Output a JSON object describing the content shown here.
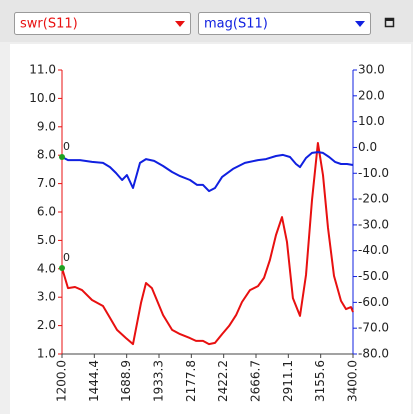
{
  "toolbar": {
    "left_select": "swr(S11)",
    "right_select": "mag(S11)"
  },
  "chart_data": {
    "type": "line",
    "marker_label": "0",
    "xlim": [
      1200,
      3400
    ],
    "xticks": [
      {
        "value": 1200,
        "label": "1200.0"
      },
      {
        "value": 1444.4,
        "label": "1444.4"
      },
      {
        "value": 1688.9,
        "label": "1688.9"
      },
      {
        "value": 1933.3,
        "label": "1933.3"
      },
      {
        "value": 2177.8,
        "label": "2177.8"
      },
      {
        "value": 2422.2,
        "label": "2422.2"
      },
      {
        "value": 2666.7,
        "label": "2666.7"
      },
      {
        "value": 2911.1,
        "label": "2911.1"
      },
      {
        "value": 3155.6,
        "label": "3155.6"
      },
      {
        "value": 3400,
        "label": "3400.0"
      }
    ],
    "ylim": [
      1,
      11
    ],
    "yticks": [
      {
        "value": 1,
        "label": "1.0"
      },
      {
        "value": 2,
        "label": "2.0"
      },
      {
        "value": 3,
        "label": "3.0"
      },
      {
        "value": 4,
        "label": "4.0"
      },
      {
        "value": 5,
        "label": "5.0"
      },
      {
        "value": 6,
        "label": "6.0"
      },
      {
        "value": 7,
        "label": "7.0"
      },
      {
        "value": 8,
        "label": "8.0"
      },
      {
        "value": 9,
        "label": "9.0"
      },
      {
        "value": 10,
        "label": "10.0"
      },
      {
        "value": 11,
        "label": "11.0"
      }
    ],
    "y2lim": [
      -80,
      30
    ],
    "y2ticks": [
      {
        "value": -80,
        "label": "-80.0"
      },
      {
        "value": -70,
        "label": "-70.0"
      },
      {
        "value": -60,
        "label": "-60.0"
      },
      {
        "value": -50,
        "label": "-50.0"
      },
      {
        "value": -40,
        "label": "-40.0"
      },
      {
        "value": -30,
        "label": "-30.0"
      },
      {
        "value": -20,
        "label": "-20.0"
      },
      {
        "value": -10,
        "label": "-10.0"
      },
      {
        "value": 0,
        "label": "0.0"
      },
      {
        "value": 10,
        "label": "10.0"
      },
      {
        "value": 20,
        "label": "20.0"
      },
      {
        "value": 30,
        "label": "30.0"
      }
    ],
    "series": [
      {
        "name": "swr(S11)",
        "color": "#e81010",
        "axis": "y",
        "x": [
          1200,
          1245,
          1298,
          1351,
          1427,
          1510,
          1563,
          1616,
          1684,
          1737,
          1797,
          1835,
          1880,
          1964,
          2032,
          2092,
          2168,
          2213,
          2266,
          2311,
          2357,
          2410,
          2463,
          2516,
          2561,
          2621,
          2682,
          2727,
          2772,
          2818,
          2863,
          2901,
          2946,
          2999,
          3045,
          3090,
          3135,
          3173,
          3211,
          3256,
          3309,
          3347,
          3385,
          3400
        ],
        "values": [
          4.03,
          3.32,
          3.36,
          3.25,
          2.9,
          2.69,
          2.27,
          1.85,
          1.56,
          1.35,
          2.8,
          3.5,
          3.32,
          2.37,
          1.85,
          1.7,
          1.56,
          1.46,
          1.46,
          1.35,
          1.39,
          1.7,
          1.99,
          2.37,
          2.83,
          3.25,
          3.39,
          3.68,
          4.31,
          5.19,
          5.82,
          4.94,
          2.97,
          2.34,
          3.78,
          6.42,
          8.43,
          7.3,
          5.44,
          3.75,
          2.87,
          2.58,
          2.65,
          2.48
        ]
      },
      {
        "name": "mag(S11)",
        "color": "#1020e0",
        "axis": "y2",
        "x": [
          1200,
          1245,
          1336,
          1427,
          1510,
          1563,
          1608,
          1654,
          1691,
          1737,
          1790,
          1835,
          1896,
          1964,
          2032,
          2092,
          2168,
          2221,
          2266,
          2311,
          2357,
          2410,
          2493,
          2583,
          2682,
          2742,
          2818,
          2871,
          2924,
          2969,
          2999,
          3045,
          3090,
          3135,
          3173,
          3219,
          3264,
          3309,
          3355,
          3400
        ],
        "values": [
          -3.7,
          -4.9,
          -4.9,
          -5.6,
          -6.0,
          -7.6,
          -9.9,
          -12.6,
          -10.7,
          -15.7,
          -6.0,
          -4.5,
          -5.2,
          -7.2,
          -9.5,
          -11.1,
          -12.6,
          -14.5,
          -14.5,
          -16.9,
          -15.7,
          -11.4,
          -8.3,
          -6.0,
          -4.9,
          -4.5,
          -3.3,
          -2.9,
          -3.7,
          -6.4,
          -7.6,
          -4.1,
          -2.1,
          -1.8,
          -2.1,
          -3.7,
          -5.6,
          -6.4,
          -6.4,
          -6.8
        ]
      }
    ]
  }
}
